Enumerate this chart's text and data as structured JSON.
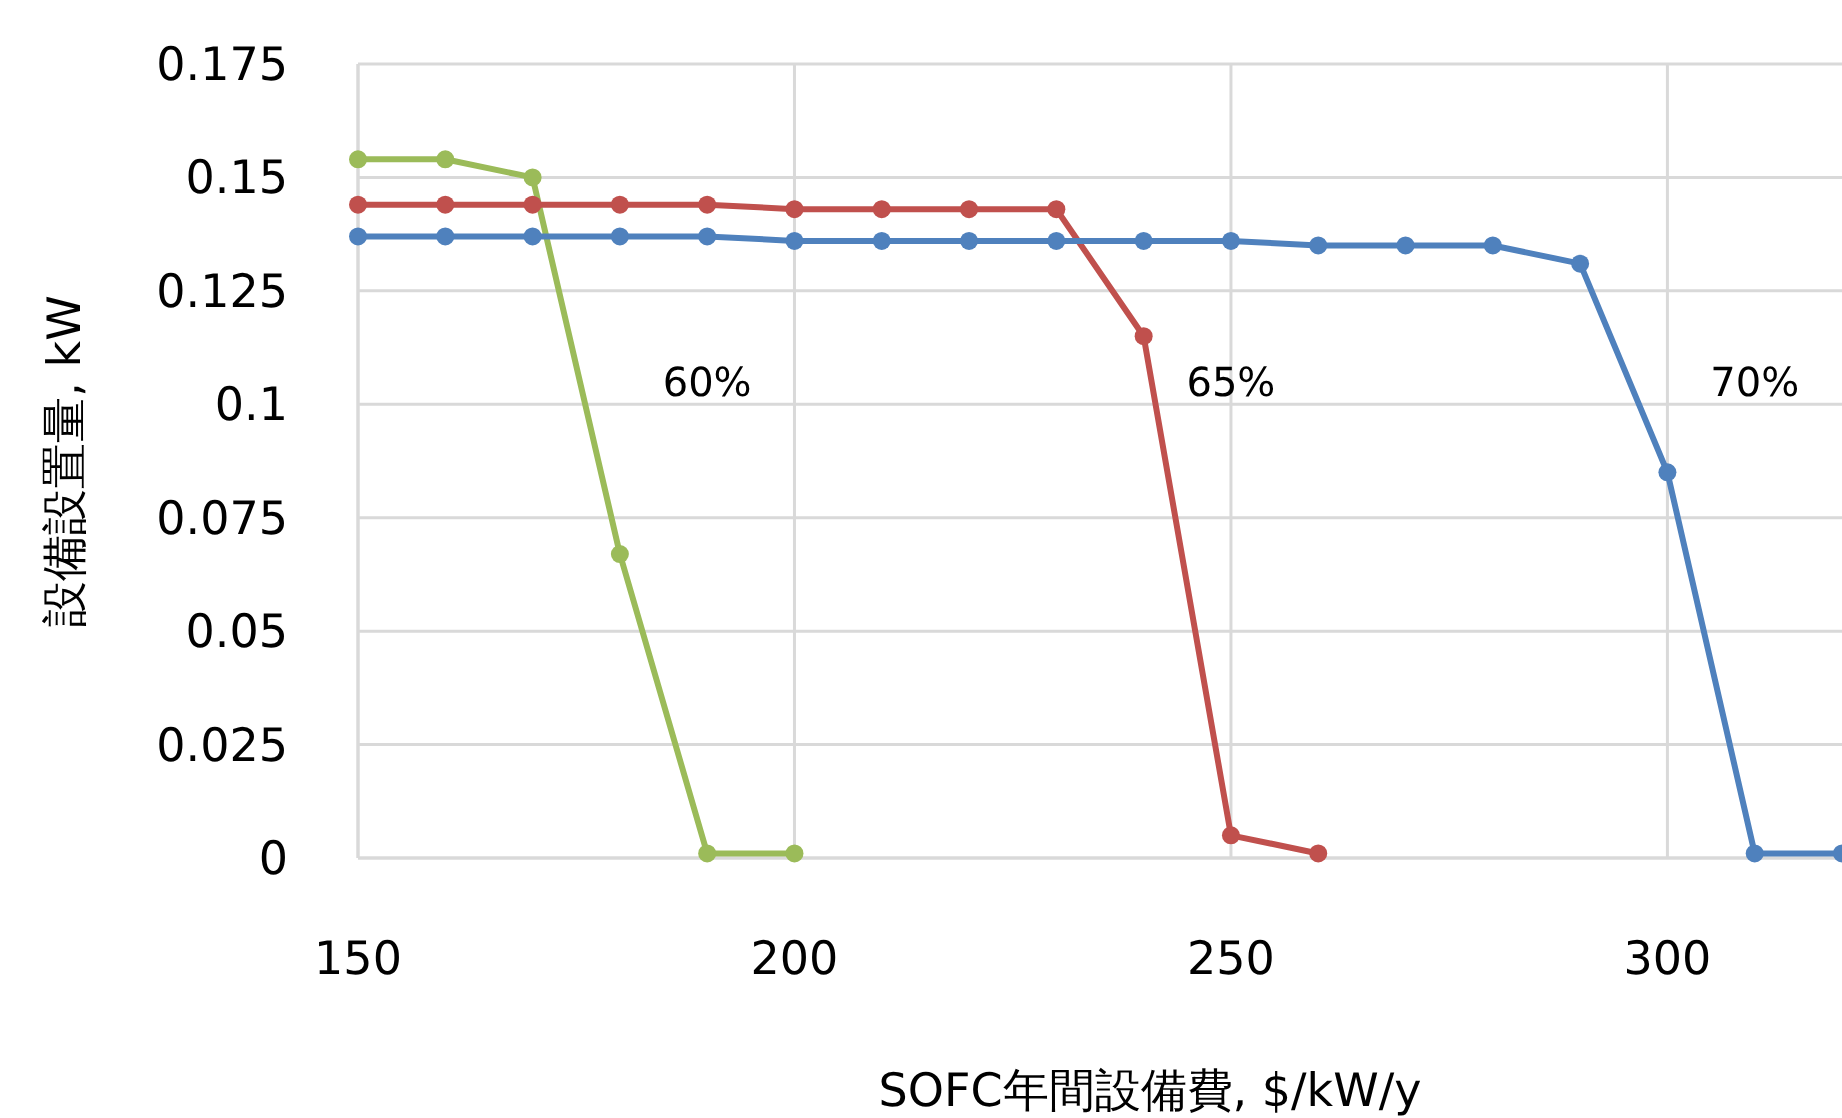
{
  "chart_data": {
    "type": "line",
    "xlabel": "SOFC年間設備費, $/kW/y",
    "ylabel": "設備設置量, kW",
    "x": [
      150,
      160,
      170,
      180,
      190,
      200,
      210,
      220,
      230,
      240,
      250,
      260,
      270,
      280,
      290,
      300,
      310,
      320
    ],
    "series": [
      {
        "name": "60%",
        "color": "#9bbb59",
        "x": [
          150,
          160,
          170,
          180,
          190,
          200
        ],
        "values": [
          0.154,
          0.154,
          0.15,
          0.067,
          0.001,
          0.001
        ]
      },
      {
        "name": "65%",
        "color": "#c0504d",
        "x": [
          150,
          160,
          170,
          180,
          190,
          200,
          210,
          220,
          230,
          240,
          250,
          260
        ],
        "values": [
          0.144,
          0.144,
          0.144,
          0.144,
          0.144,
          0.143,
          0.143,
          0.143,
          0.143,
          0.115,
          0.005,
          0.001
        ]
      },
      {
        "name": "70%",
        "color": "#4f81bd",
        "values": [
          0.137,
          0.137,
          0.137,
          0.137,
          0.137,
          0.136,
          0.136,
          0.136,
          0.136,
          0.136,
          0.136,
          0.135,
          0.135,
          0.135,
          0.131,
          0.085,
          0.001,
          0.001
        ]
      }
    ],
    "xlim": [
      150,
      320
    ],
    "xticks": [
      150,
      200,
      250,
      300
    ],
    "ylim": [
      0,
      0.175
    ],
    "yticks": [
      0,
      0.025,
      0.05,
      0.075,
      0.1,
      0.125,
      0.15,
      0.175
    ],
    "grid": true,
    "marker": "circle",
    "line_style": "solid"
  }
}
